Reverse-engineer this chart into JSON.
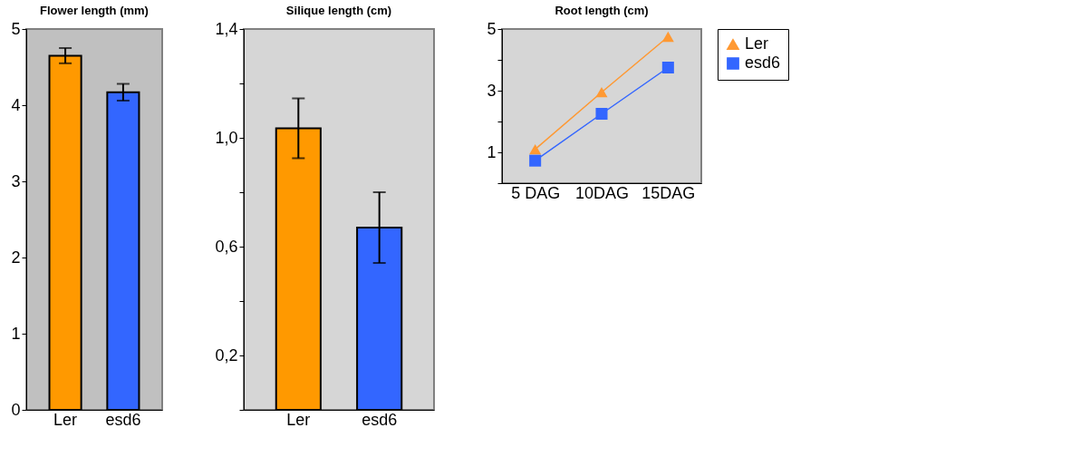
{
  "chart_data": [
    {
      "type": "bar",
      "title": "Flower length (mm)",
      "categories": [
        "Ler",
        "esd6"
      ],
      "values": [
        4.65,
        4.17
      ],
      "colors": [
        "#ff9900",
        "#3366ff"
      ],
      "errors": [
        0.1,
        0.11
      ],
      "ylim": [
        0,
        5
      ],
      "yticks": [
        0,
        1,
        2,
        3,
        4,
        5
      ],
      "grid": false
    },
    {
      "type": "bar",
      "title": "Silique length (cm)",
      "categories": [
        "Ler",
        "esd6"
      ],
      "values": [
        1.035,
        0.67
      ],
      "colors": [
        "#ff9900",
        "#3366ff"
      ],
      "errors": [
        0.11,
        0.13
      ],
      "ylim": [
        0,
        1.4
      ],
      "yticks": [
        {
          "value": 0,
          "label": null
        },
        {
          "value": 0.2,
          "label": "0,2"
        },
        {
          "value": 0.4,
          "label": null
        },
        {
          "value": 0.6,
          "label": "0,6"
        },
        {
          "value": 0.8,
          "label": null
        },
        {
          "value": 1.0,
          "label": "1,0"
        },
        {
          "value": 1.2,
          "label": null
        },
        {
          "value": 1.4,
          "label": "1,4"
        }
      ],
      "grid": false
    },
    {
      "type": "line",
      "title": "Root length (cm)",
      "categories": [
        "5 DAG",
        "10DAG",
        "15DAG"
      ],
      "series": [
        {
          "name": "Ler",
          "color": "#ff9933",
          "marker": "triangle",
          "values": [
            1.1,
            2.95,
            4.75
          ]
        },
        {
          "name": "esd6",
          "color": "#3366ff",
          "marker": "square",
          "values": [
            0.73,
            2.25,
            3.75
          ]
        }
      ],
      "ylim": [
        0,
        5
      ],
      "yticks": [
        {
          "value": 0,
          "label": null
        },
        1,
        {
          "value": 2,
          "label": null
        },
        3,
        {
          "value": 4,
          "label": null
        },
        5
      ],
      "grid": false,
      "legend": "right",
      "line_style": "solid"
    }
  ]
}
